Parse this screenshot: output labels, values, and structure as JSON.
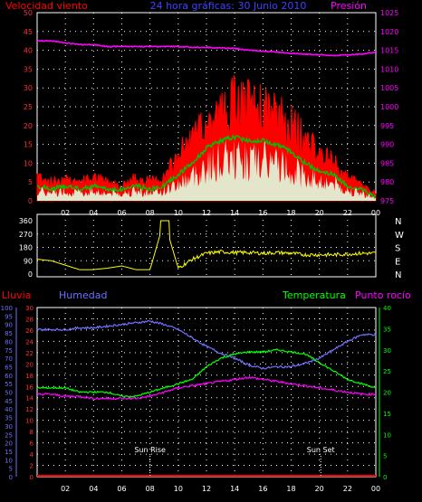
{
  "header": {
    "left_label": "Velocidad viento",
    "center_label": "24 hora gráficas: 30 Junio 2010",
    "right_label": "Presión"
  },
  "colors": {
    "wind_gust": "#ff0000",
    "wind_avg": "#00c000",
    "wind_low": "#e0ffe0",
    "pressure": "#ff00ff",
    "direction": "#ffff00",
    "humidity": "#7070ff",
    "temperature": "#00ff00",
    "dewpoint": "#ff00ff",
    "rain": "#ff0000",
    "grid": "#ffffff"
  },
  "x_ticks": [
    "02",
    "04",
    "06",
    "08",
    "10",
    "12",
    "14",
    "16",
    "18",
    "20",
    "22",
    "00"
  ],
  "chart_data": [
    {
      "type": "area",
      "name": "wind",
      "ylabel_left": "Velocidad viento",
      "ylabel_right": "Presión",
      "left_axis": {
        "min": 0,
        "max": 50,
        "ticks": [
          0,
          5,
          10,
          15,
          20,
          25,
          30,
          35,
          40,
          45,
          50
        ]
      },
      "right_axis": {
        "min": 975,
        "max": 1025,
        "ticks": [
          975,
          980,
          985,
          990,
          995,
          1000,
          1005,
          1010,
          1015,
          1020,
          1025
        ]
      },
      "x": [
        0,
        1,
        2,
        3,
        4,
        5,
        6,
        7,
        8,
        9,
        10,
        11,
        12,
        13,
        14,
        15,
        16,
        17,
        18,
        19,
        20,
        21,
        22,
        23,
        24
      ],
      "series": [
        {
          "name": "gust",
          "values": [
            7,
            5,
            6,
            5,
            6,
            5,
            4,
            6,
            5,
            6,
            12,
            16,
            20,
            23,
            26,
            25,
            24,
            22,
            20,
            16,
            12,
            10,
            6,
            4,
            2
          ]
        },
        {
          "name": "average",
          "values": [
            4,
            3,
            4,
            3,
            4,
            3,
            3,
            4,
            3,
            4,
            7,
            10,
            14,
            16,
            17,
            16,
            16,
            15,
            13,
            10,
            8,
            7,
            4,
            3,
            1
          ]
        },
        {
          "name": "pressure",
          "values": [
            1017.5,
            1017.5,
            1017,
            1016.5,
            1016.5,
            1016,
            1016,
            1016,
            1016,
            1016,
            1016,
            1015.8,
            1015.8,
            1015.6,
            1015.5,
            1015,
            1014.8,
            1014.5,
            1014.2,
            1014,
            1013.8,
            1013.6,
            1013.8,
            1014,
            1014.5
          ]
        }
      ]
    },
    {
      "type": "line",
      "name": "direction",
      "left_axis": {
        "min": 0,
        "max": 360,
        "ticks": [
          0,
          90,
          180,
          270,
          360
        ]
      },
      "right_labels": [
        "N",
        "W",
        "S",
        "E",
        "N"
      ],
      "x": [
        0,
        1,
        2,
        3,
        4,
        5,
        6,
        7,
        8,
        9,
        10,
        11,
        12,
        13,
        14,
        15,
        16,
        17,
        18,
        19,
        20,
        21,
        22,
        23,
        24
      ],
      "values": [
        100,
        90,
        60,
        30,
        30,
        40,
        55,
        30,
        30,
        360,
        40,
        100,
        140,
        150,
        145,
        145,
        140,
        145,
        140,
        130,
        130,
        130,
        135,
        140,
        140
      ]
    },
    {
      "type": "line",
      "name": "weather",
      "ylabel_far_left": "Lluvia",
      "ylabel_left": "Humedad",
      "ylabel_right": "Temperatura",
      "ylabel_far_right": "Punto rocío",
      "humidity_axis": {
        "min": 0,
        "max": 100,
        "ticks": [
          0,
          5,
          10,
          15,
          20,
          25,
          30,
          35,
          40,
          45,
          50,
          55,
          60,
          65,
          70,
          75,
          80,
          85,
          90,
          95,
          100
        ]
      },
      "rain_axis": {
        "min": 0,
        "max": 30,
        "ticks": [
          0,
          2,
          4,
          6,
          8,
          10,
          12,
          14,
          16,
          18,
          20,
          22,
          24,
          26,
          28,
          30
        ]
      },
      "temp_axis": {
        "min": 0,
        "max": 40,
        "ticks": [
          0,
          5,
          10,
          15,
          20,
          25,
          30,
          35,
          40
        ]
      },
      "x": [
        0,
        1,
        2,
        3,
        4,
        5,
        6,
        7,
        8,
        9,
        10,
        11,
        12,
        13,
        14,
        15,
        16,
        17,
        18,
        19,
        20,
        21,
        22,
        23,
        24
      ],
      "series": [
        {
          "name": "humidity",
          "values": [
            87,
            87,
            87,
            88,
            88,
            89,
            90,
            91,
            92,
            90,
            87,
            82,
            77,
            73,
            70,
            66,
            64,
            65,
            65,
            67,
            70,
            75,
            80,
            84,
            84
          ]
        },
        {
          "name": "temperature",
          "values": [
            21,
            21,
            21,
            20,
            20,
            20,
            19,
            19,
            20,
            21,
            22,
            23,
            26,
            28,
            29,
            29.5,
            29.5,
            30,
            29.5,
            29,
            27,
            25,
            23,
            22,
            21
          ]
        },
        {
          "name": "dewpoint",
          "values": [
            19.5,
            19.5,
            19,
            19,
            18.5,
            18.5,
            18.5,
            18.5,
            19,
            20,
            21,
            21.5,
            22,
            22.5,
            23,
            23.5,
            23,
            22.5,
            22,
            21.5,
            21,
            20.5,
            20,
            19.5,
            19.5
          ]
        },
        {
          "name": "rain",
          "values": [
            0,
            0,
            0,
            0,
            0,
            0,
            0,
            0,
            0,
            0,
            0,
            0,
            0,
            0,
            0,
            0,
            0,
            0,
            0,
            0,
            0,
            0,
            0,
            0,
            0
          ]
        }
      ],
      "annotations": [
        {
          "text": "Sun Rise",
          "x": 8
        },
        {
          "text": "Sun Set",
          "x": 20.1
        }
      ]
    }
  ]
}
